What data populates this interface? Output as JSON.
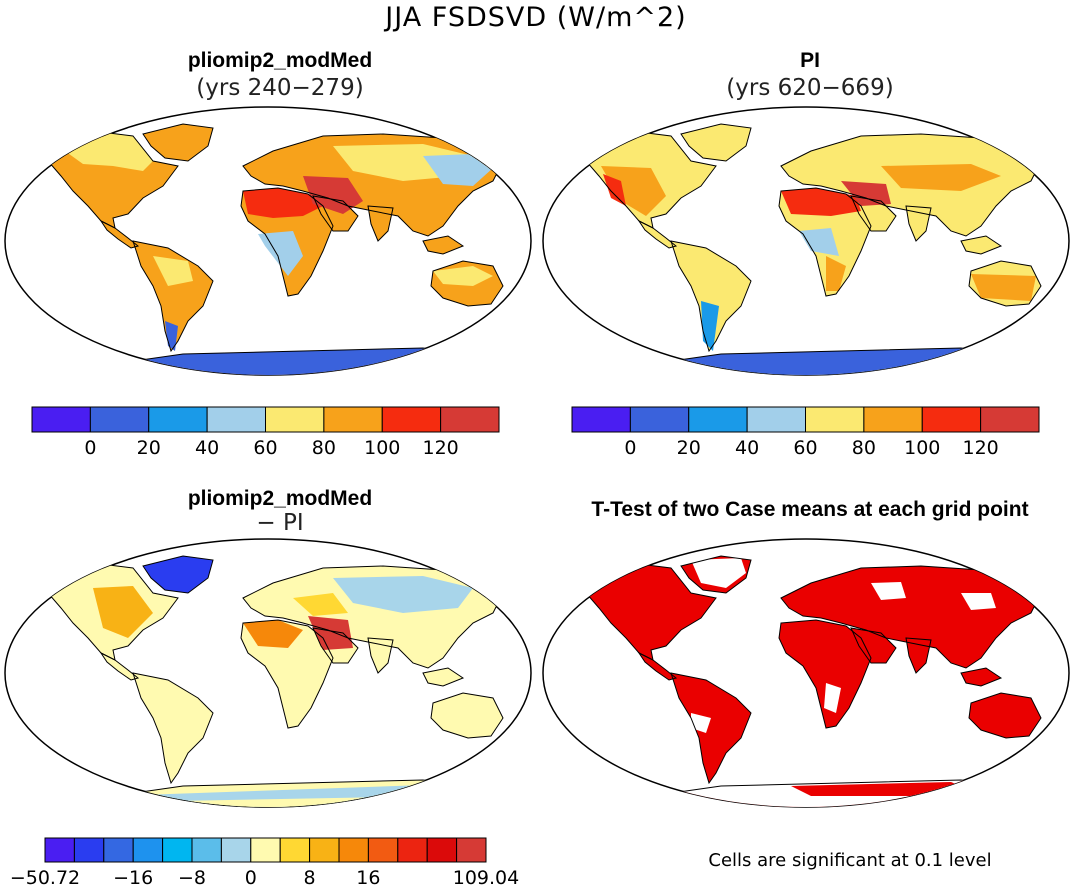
{
  "main_title": "JJA FSDSVD (W/m^2)",
  "panels": {
    "top_left": {
      "title": "pliomip2_modMed",
      "subtitle": "(yrs 240−279)"
    },
    "top_right": {
      "title": "PI",
      "subtitle": "(yrs 620−669)"
    },
    "bottom_left": {
      "title": "pliomip2_modMed",
      "subtitle": "− PI"
    },
    "bottom_right": {
      "title": "T-Test of two Case means at each grid point",
      "note": "Cells are significant at 0.1 level"
    }
  },
  "colorbar_abs": {
    "colors": [
      "#4a1ef2",
      "#3a62dc",
      "#1a9ae8",
      "#a2cfea",
      "#fbe971",
      "#f7a21b",
      "#f52c0f",
      "#d63a35"
    ],
    "labels": [
      "0",
      "20",
      "40",
      "60",
      "80",
      "100",
      "120"
    ]
  },
  "colorbar_diff": {
    "colors": [
      "#4a1ef2",
      "#2a3df0",
      "#3468e2",
      "#1e92ee",
      "#00b6f0",
      "#5bbdea",
      "#a8d5ea",
      "#fffab0",
      "#ffd833",
      "#f8b215",
      "#f6880a",
      "#f25b12",
      "#ec2411",
      "#db0a0a",
      "#d63a35"
    ],
    "labels": [
      "−50.72",
      "−16",
      "−8",
      "0",
      "8",
      "16",
      "109.04"
    ]
  },
  "colors": {
    "significant": "#ea0000",
    "land_warm": "#f7a21b",
    "land_hot": "#f52c0f",
    "land_mild": "#fbe971",
    "land_cool": "#a2cfea",
    "antarctica": "#3a62dc",
    "coast": "#000000"
  }
}
